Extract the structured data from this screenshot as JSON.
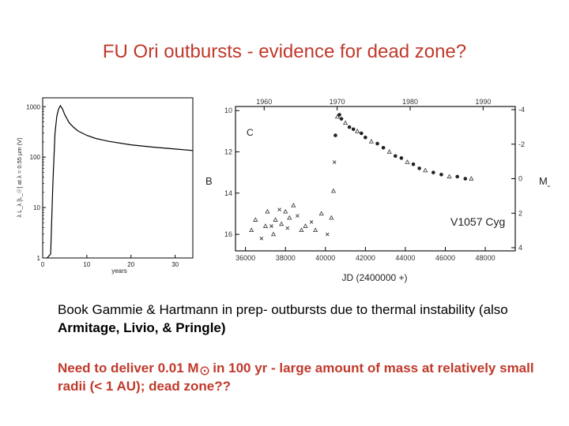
{
  "slide": {
    "title": "FU Ori outbursts - evidence for dead zone?",
    "body_line1_plain": "Book Gammie & Hartmann in prep- outbursts due to thermal instability (also ",
    "body_line1_bold": "Armitage, Livio, & Pringle)",
    "red_text_part1": "Need to deliver 0.01 M",
    "red_text_part2": " in 100 yr - large amount of mass at relatively small radii (< 1 AU); dead zone??",
    "accent_color": "#c0392b"
  },
  "figure_left": {
    "ylabel": "λ L_λ [L_☉] at λ = 0.55 μm (V)",
    "xlabel": "years",
    "y_ticks": [
      "1000",
      "100",
      "10",
      "1"
    ],
    "x_ticks": [
      "0",
      "10",
      "20",
      "30"
    ]
  },
  "figure_right": {
    "star_label": "V1057 Cyg",
    "panel_letter": "C",
    "left_axis_label": "B",
    "right_axis_label": "M_B",
    "xlabel": "JD (2400000 +)",
    "top_ticks": [
      "1960",
      "1970",
      "1980",
      "1990"
    ],
    "bottom_ticks": [
      "36000",
      "38000",
      "40000",
      "42000",
      "44000",
      "46000",
      "48000"
    ],
    "left_ticks": [
      "10",
      "12",
      "14",
      "16"
    ],
    "right_ticks": [
      "-4",
      "-2",
      "0",
      "2",
      "4"
    ]
  },
  "chart_data": [
    {
      "type": "line",
      "title": "",
      "xlabel": "years",
      "ylabel": "λ L_λ [L_☉] at λ = 0.55 μm (V)",
      "y_scale": "log",
      "xlim": [
        0,
        34
      ],
      "ylim": [
        1,
        1500
      ],
      "grid": false,
      "series": [
        {
          "x": [
            1,
            1.8,
            2.3,
            2.8,
            3.2,
            3.6,
            4.0,
            4.5,
            5.0,
            6,
            7,
            8,
            10,
            12,
            15,
            20,
            25,
            30,
            34
          ],
          "y": [
            1,
            1.2,
            30,
            300,
            650,
            900,
            1050,
            900,
            700,
            480,
            390,
            330,
            270,
            235,
            205,
            175,
            158,
            145,
            135
          ]
        }
      ]
    },
    {
      "type": "scatter",
      "title": "",
      "xlabel": "JD (2400000 +)",
      "ylabel": "B",
      "y_inverted": true,
      "xlim": [
        35500,
        49500
      ],
      "ylim": [
        16.8,
        9.8
      ],
      "grid": false,
      "annotations": [
        "V1057 Cyg",
        "C"
      ],
      "series": [
        {
          "x": [
            36300,
            36500,
            36800,
            37000,
            37100,
            37300,
            37400,
            37500,
            37700,
            37800,
            38000,
            38100,
            38200,
            38400,
            38600,
            38800,
            39000,
            39300,
            39500,
            39800,
            40100,
            40300,
            40400,
            40450,
            40500,
            40600,
            40700,
            40800,
            41000,
            41200,
            41400,
            41600,
            41800,
            42000,
            42300,
            42600,
            42900,
            43200,
            43500,
            43800,
            44100,
            44400,
            44700,
            45000,
            45400,
            45800,
            46200,
            46600,
            47000,
            47300
          ],
          "y": [
            15.8,
            15.3,
            16.2,
            15.6,
            14.9,
            15.6,
            16.0,
            15.3,
            14.8,
            15.5,
            14.9,
            15.7,
            15.2,
            14.6,
            15.1,
            15.8,
            15.6,
            15.4,
            15.8,
            15.0,
            16.0,
            15.2,
            13.9,
            12.5,
            11.2,
            10.3,
            10.2,
            10.4,
            10.6,
            10.8,
            10.9,
            11.0,
            11.1,
            11.3,
            11.5,
            11.6,
            11.8,
            12.0,
            12.2,
            12.3,
            12.5,
            12.6,
            12.8,
            12.9,
            13.0,
            13.1,
            13.2,
            13.2,
            13.3,
            13.3
          ]
        }
      ]
    }
  ]
}
